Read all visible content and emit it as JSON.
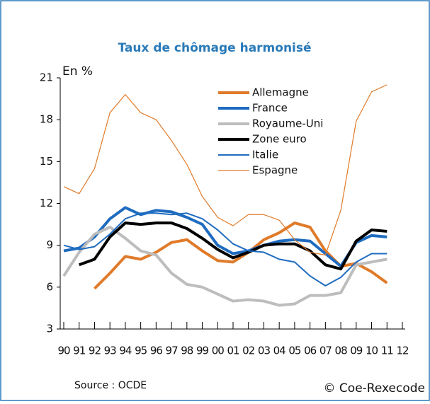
{
  "chart_data": {
    "type": "line",
    "title": "Taux de chômage harmonisé",
    "y_label": "En %",
    "source": "Source : OCDE",
    "credit": "© Coe-Rexecode",
    "categories": [
      "90",
      "91",
      "92",
      "93",
      "94",
      "95",
      "96",
      "97",
      "98",
      "99",
      "00",
      "01",
      "02",
      "03",
      "04",
      "05",
      "06",
      "07",
      "08",
      "09",
      "10",
      "11",
      "12"
    ],
    "ylim": [
      3,
      21
    ],
    "yticks": [
      3,
      6,
      9,
      12,
      15,
      18,
      21
    ],
    "series": [
      {
        "name": "Allemagne",
        "color": "#e07b2a",
        "width": 4,
        "values": [
          null,
          null,
          5.9,
          7.0,
          8.2,
          8.0,
          8.5,
          9.2,
          9.4,
          8.6,
          7.9,
          7.8,
          8.5,
          9.4,
          9.9,
          10.6,
          10.3,
          8.6,
          7.5,
          7.7,
          7.1,
          6.3,
          null
        ]
      },
      {
        "name": "France",
        "color": "#1f6cc0",
        "width": 4,
        "values": [
          8.6,
          8.8,
          9.6,
          10.9,
          11.7,
          11.2,
          11.5,
          11.4,
          11.0,
          10.5,
          9.0,
          8.4,
          8.6,
          9.0,
          9.3,
          9.4,
          9.3,
          8.4,
          7.5,
          9.2,
          9.7,
          9.6,
          null
        ]
      },
      {
        "name": "Royaume-Uni",
        "color": "#bdbdbd",
        "width": 4,
        "values": [
          6.8,
          8.5,
          9.8,
          10.3,
          9.5,
          8.6,
          8.3,
          7.0,
          6.2,
          6.0,
          5.5,
          5.0,
          5.1,
          5.0,
          4.7,
          4.8,
          5.4,
          5.4,
          5.6,
          7.6,
          7.8,
          8.0,
          null
        ]
      },
      {
        "name": "Zone euro",
        "color": "#000000",
        "width": 4,
        "values": [
          null,
          7.6,
          8.0,
          9.6,
          10.6,
          10.5,
          10.6,
          10.6,
          10.2,
          9.5,
          8.7,
          8.1,
          8.5,
          9.0,
          9.1,
          9.1,
          8.6,
          7.6,
          7.3,
          9.3,
          10.1,
          10.0,
          null
        ]
      },
      {
        "name": "Italie",
        "color": "#1f6cc0",
        "width": 2,
        "values": [
          9.0,
          8.7,
          8.9,
          9.8,
          10.9,
          11.3,
          11.3,
          11.2,
          11.3,
          10.9,
          10.1,
          9.1,
          8.6,
          8.5,
          8.0,
          7.8,
          6.8,
          6.1,
          6.7,
          7.8,
          8.4,
          8.4,
          null
        ]
      },
      {
        "name": "Espagne",
        "color": "#e07b2a",
        "width": 1.2,
        "values": [
          13.2,
          12.7,
          14.5,
          18.5,
          19.8,
          18.5,
          18.0,
          16.5,
          14.8,
          12.5,
          11.0,
          10.4,
          11.2,
          11.2,
          10.8,
          9.4,
          8.5,
          8.3,
          11.5,
          17.9,
          20.0,
          20.5,
          null
        ]
      }
    ]
  }
}
